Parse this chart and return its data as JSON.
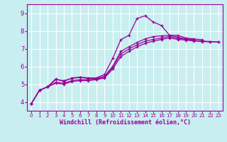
{
  "xlabel": "Windchill (Refroidissement éolien,°C)",
  "background_color": "#c8eef0",
  "grid_color": "#ffffff",
  "line_color": "#990099",
  "xlim": [
    -0.5,
    23.5
  ],
  "ylim": [
    3.5,
    9.5
  ],
  "xticks": [
    0,
    1,
    2,
    3,
    4,
    5,
    6,
    7,
    8,
    9,
    10,
    11,
    12,
    13,
    14,
    15,
    16,
    17,
    18,
    19,
    20,
    21,
    22,
    23
  ],
  "yticks": [
    4,
    5,
    6,
    7,
    8,
    9
  ],
  "series1_x": [
    0,
    1,
    2,
    3,
    4,
    5,
    6,
    7,
    8,
    9,
    10,
    11,
    12,
    13,
    14,
    15,
    16,
    17,
    18,
    19,
    20,
    21
  ],
  "series1_y": [
    3.9,
    4.65,
    4.85,
    5.3,
    5.15,
    5.35,
    5.4,
    5.35,
    5.35,
    5.55,
    6.45,
    7.5,
    7.75,
    8.7,
    8.85,
    8.5,
    8.3,
    7.75,
    7.75,
    7.6,
    7.55,
    7.5
  ],
  "series2_x": [
    0,
    1,
    2,
    3,
    4,
    5,
    6,
    7,
    8,
    9,
    10,
    11,
    12,
    13,
    14,
    15,
    16,
    17,
    18,
    19,
    20,
    21,
    22,
    23
  ],
  "series2_y": [
    3.9,
    4.65,
    4.85,
    5.05,
    5.0,
    5.15,
    5.2,
    5.2,
    5.25,
    5.35,
    5.85,
    6.55,
    6.85,
    7.1,
    7.3,
    7.42,
    7.52,
    7.6,
    7.52,
    7.48,
    7.43,
    7.4,
    7.38,
    7.38
  ],
  "series3_x": [
    0,
    1,
    2,
    3,
    4,
    5,
    6,
    7,
    8,
    9,
    10,
    11,
    12,
    13,
    14,
    15,
    16,
    17,
    18,
    19,
    20,
    21,
    22,
    23
  ],
  "series3_y": [
    3.9,
    4.65,
    4.85,
    5.1,
    5.05,
    5.2,
    5.25,
    5.25,
    5.28,
    5.38,
    5.95,
    6.7,
    6.98,
    7.22,
    7.42,
    7.52,
    7.6,
    7.68,
    7.58,
    7.52,
    7.47,
    7.43,
    7.4,
    7.38
  ],
  "series4_x": [
    0,
    1,
    2,
    3,
    4,
    5,
    6,
    7,
    8,
    9,
    10,
    11,
    12,
    13,
    14,
    15,
    16,
    17,
    18,
    19,
    20
  ],
  "series4_y": [
    3.9,
    4.65,
    4.85,
    5.25,
    5.2,
    5.32,
    5.38,
    5.32,
    5.32,
    5.45,
    6.0,
    6.85,
    7.1,
    7.35,
    7.55,
    7.68,
    7.72,
    7.75,
    7.65,
    7.55,
    7.5
  ]
}
